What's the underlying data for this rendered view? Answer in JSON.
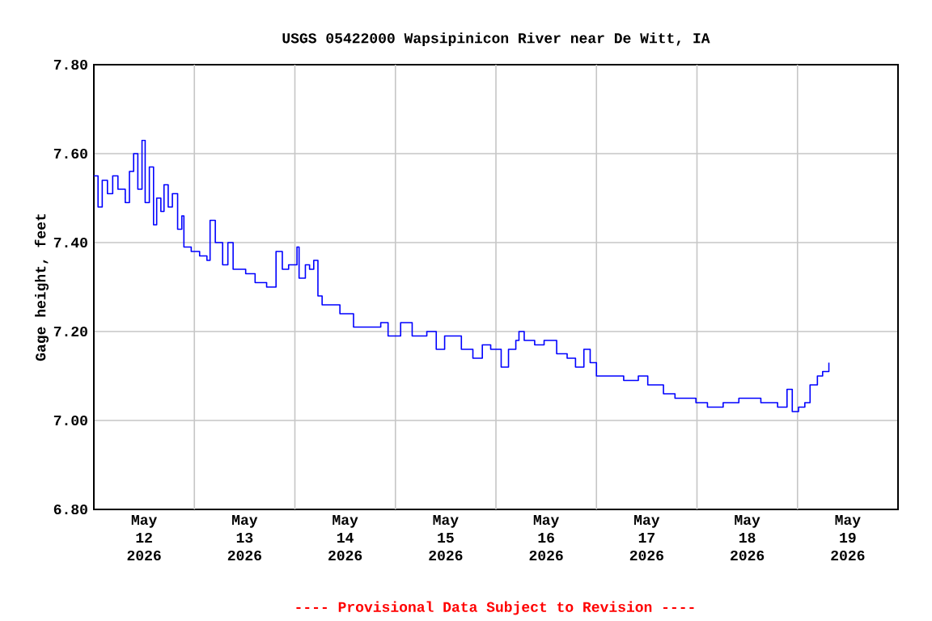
{
  "chart_data": {
    "type": "step",
    "title": "USGS 05422000 Wapsipinicon River near De Witt, IA",
    "ylabel": "Gage height, feet",
    "annotations": [
      "---- Provisional Data Subject to Revision ----"
    ],
    "x": [
      "2026-05-12T00:00",
      "2026-05-12T01:00",
      "2026-05-12T02:00",
      "2026-05-12T03:15",
      "2026-05-12T04:30",
      "2026-05-12T05:45",
      "2026-05-12T07:30",
      "2026-05-12T08:30",
      "2026-05-12T09:30",
      "2026-05-12T10:30",
      "2026-05-12T11:30",
      "2026-05-12T12:15",
      "2026-05-12T13:15",
      "2026-05-12T14:15",
      "2026-05-12T15:00",
      "2026-05-12T16:00",
      "2026-05-12T16:45",
      "2026-05-12T17:45",
      "2026-05-12T18:45",
      "2026-05-12T20:00",
      "2026-05-12T21:00",
      "2026-05-12T21:30",
      "2026-05-12T23:15",
      "2026-05-13T01:15",
      "2026-05-13T03:00",
      "2026-05-13T03:45",
      "2026-05-13T05:00",
      "2026-05-13T06:45",
      "2026-05-13T08:00",
      "2026-05-13T09:15",
      "2026-05-13T12:15",
      "2026-05-13T14:30",
      "2026-05-13T17:15",
      "2026-05-13T18:30",
      "2026-05-13T19:30",
      "2026-05-13T21:00",
      "2026-05-13T22:30",
      "2026-05-14T00:30",
      "2026-05-14T01:00",
      "2026-05-14T02:30",
      "2026-05-14T03:30",
      "2026-05-14T04:30",
      "2026-05-14T05:30",
      "2026-05-14T06:30",
      "2026-05-14T09:15",
      "2026-05-14T10:45",
      "2026-05-14T14:00",
      "2026-05-14T17:45",
      "2026-05-14T20:30",
      "2026-05-14T22:15",
      "2026-05-15T01:15",
      "2026-05-15T04:00",
      "2026-05-15T07:30",
      "2026-05-15T09:45",
      "2026-05-15T11:45",
      "2026-05-15T15:45",
      "2026-05-15T18:30",
      "2026-05-15T20:45",
      "2026-05-15T22:45",
      "2026-05-16T00:00",
      "2026-05-16T01:15",
      "2026-05-16T03:00",
      "2026-05-16T04:45",
      "2026-05-16T05:30",
      "2026-05-16T06:45",
      "2026-05-16T09:15",
      "2026-05-16T11:30",
      "2026-05-16T14:30",
      "2026-05-16T17:00",
      "2026-05-16T19:00",
      "2026-05-16T21:00",
      "2026-05-16T22:30",
      "2026-05-17T00:00",
      "2026-05-17T02:45",
      "2026-05-17T06:30",
      "2026-05-17T10:00",
      "2026-05-17T12:15",
      "2026-05-17T16:00",
      "2026-05-17T18:45",
      "2026-05-17T21:15",
      "2026-05-17T23:45",
      "2026-05-18T02:30",
      "2026-05-18T06:15",
      "2026-05-18T10:00",
      "2026-05-18T15:15",
      "2026-05-18T19:15",
      "2026-05-18T21:30",
      "2026-05-18T22:45",
      "2026-05-19T00:15",
      "2026-05-19T01:45",
      "2026-05-19T03:00",
      "2026-05-19T04:45",
      "2026-05-19T06:00",
      "2026-05-19T07:30"
    ],
    "series": [
      {
        "color": "#0000ff",
        "values": [
          7.55,
          7.48,
          7.54,
          7.51,
          7.55,
          7.52,
          7.49,
          7.56,
          7.6,
          7.52,
          7.63,
          7.49,
          7.57,
          7.44,
          7.5,
          7.47,
          7.53,
          7.48,
          7.51,
          7.43,
          7.46,
          7.39,
          7.38,
          7.37,
          7.36,
          7.45,
          7.4,
          7.35,
          7.4,
          7.34,
          7.33,
          7.31,
          7.3,
          7.3,
          7.38,
          7.34,
          7.35,
          7.39,
          7.32,
          7.35,
          7.34,
          7.36,
          7.28,
          7.26,
          7.26,
          7.24,
          7.21,
          7.21,
          7.22,
          7.19,
          7.22,
          7.19,
          7.2,
          7.16,
          7.19,
          7.16,
          7.14,
          7.17,
          7.16,
          7.16,
          7.12,
          7.16,
          7.18,
          7.2,
          7.18,
          7.17,
          7.18,
          7.15,
          7.14,
          7.12,
          7.16,
          7.13,
          7.1,
          7.1,
          7.09,
          7.1,
          7.08,
          7.06,
          7.05,
          7.05,
          7.04,
          7.03,
          7.04,
          7.05,
          7.04,
          7.03,
          7.07,
          7.02,
          7.03,
          7.04,
          7.08,
          7.1,
          7.11,
          7.13
        ]
      }
    ],
    "xlim": [
      "2026-05-12T00:00",
      "2026-05-20T00:00"
    ],
    "xticks": [
      {
        "value": "2026-05-12T12:00",
        "label": "May 12 2026"
      },
      {
        "value": "2026-05-13T12:00",
        "label": "May 13 2026"
      },
      {
        "value": "2026-05-14T12:00",
        "label": "May 14 2026"
      },
      {
        "value": "2026-05-15T12:00",
        "label": "May 15 2026"
      },
      {
        "value": "2026-05-16T12:00",
        "label": "May 16 2026"
      },
      {
        "value": "2026-05-17T12:00",
        "label": "May 17 2026"
      },
      {
        "value": "2026-05-18T12:00",
        "label": "May 18 2026"
      },
      {
        "value": "2026-05-19T12:00",
        "label": "May 19 2026"
      },
      {
        "value": "2026-05-13T00:00",
        "label": null
      },
      {
        "value": "2026-05-14T00:00",
        "label": null
      },
      {
        "value": "2026-05-15T00:00",
        "label": null
      },
      {
        "value": "2026-05-16T00:00",
        "label": null
      },
      {
        "value": "2026-05-17T00:00",
        "label": null
      },
      {
        "value": "2026-05-18T00:00",
        "label": null
      },
      {
        "value": "2026-05-19T00:00",
        "label": null
      }
    ],
    "ylim": [
      6.8,
      7.8
    ],
    "yticks": [
      {
        "value": 6.8,
        "label": "6.80"
      },
      {
        "value": 7.0,
        "label": "7.00"
      },
      {
        "value": 7.2,
        "label": "7.20"
      },
      {
        "value": 7.4,
        "label": "7.40"
      },
      {
        "value": 7.6,
        "label": "7.60"
      },
      {
        "value": 7.8,
        "label": "7.80"
      }
    ],
    "grid": true,
    "marker": "none",
    "line_style": "solid"
  }
}
